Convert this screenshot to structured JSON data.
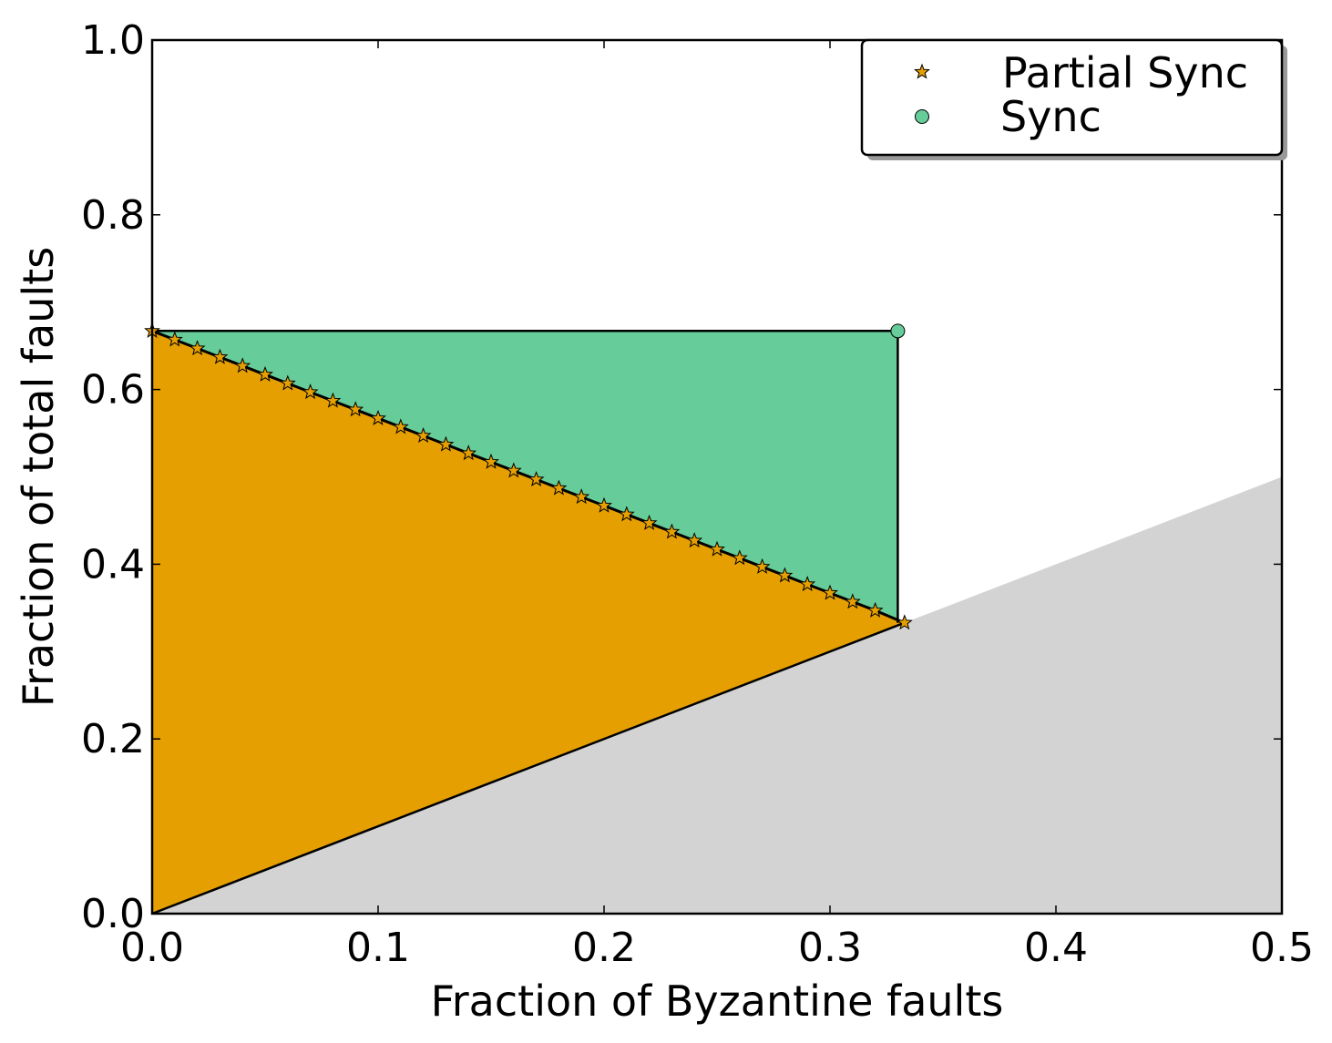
{
  "chart_data": {
    "type": "scatter",
    "xlabel": "Fraction of Byzantine faults",
    "ylabel": "Fraction of total faults",
    "xlim": [
      0.0,
      0.5
    ],
    "ylim": [
      0.0,
      1.0
    ],
    "xticks": [
      "0.0",
      "0.1",
      "0.2",
      "0.3",
      "0.4",
      "0.5"
    ],
    "yticks": [
      "0.0",
      "0.2",
      "0.4",
      "0.6",
      "0.8",
      "1.0"
    ],
    "grid": false,
    "legend_position": "top-right",
    "series": [
      {
        "name": "Partial Sync",
        "marker": "star",
        "color": "#e69f00",
        "x": [
          0.0,
          0.01,
          0.02,
          0.03,
          0.04,
          0.05,
          0.06,
          0.07,
          0.08,
          0.09,
          0.1,
          0.11,
          0.12,
          0.13,
          0.14,
          0.15,
          0.16,
          0.17,
          0.18,
          0.19,
          0.2,
          0.21,
          0.22,
          0.23,
          0.24,
          0.25,
          0.26,
          0.27,
          0.28,
          0.29,
          0.3,
          0.31,
          0.32,
          0.333
        ],
        "y": [
          0.667,
          0.657,
          0.647,
          0.637,
          0.627,
          0.617,
          0.607,
          0.597,
          0.587,
          0.577,
          0.567,
          0.557,
          0.547,
          0.537,
          0.527,
          0.517,
          0.507,
          0.497,
          0.487,
          0.477,
          0.467,
          0.457,
          0.447,
          0.437,
          0.427,
          0.417,
          0.407,
          0.397,
          0.387,
          0.377,
          0.367,
          0.357,
          0.347,
          0.333
        ]
      },
      {
        "name": "Sync",
        "marker": "circle",
        "color": "#66cc99",
        "x": [
          0.33
        ],
        "y": [
          0.667
        ]
      }
    ],
    "regions": {
      "infeasible_color": "#d3d3d3",
      "partial_sync_fill": "#e69f00",
      "sync_fill": "#66cc99"
    }
  }
}
